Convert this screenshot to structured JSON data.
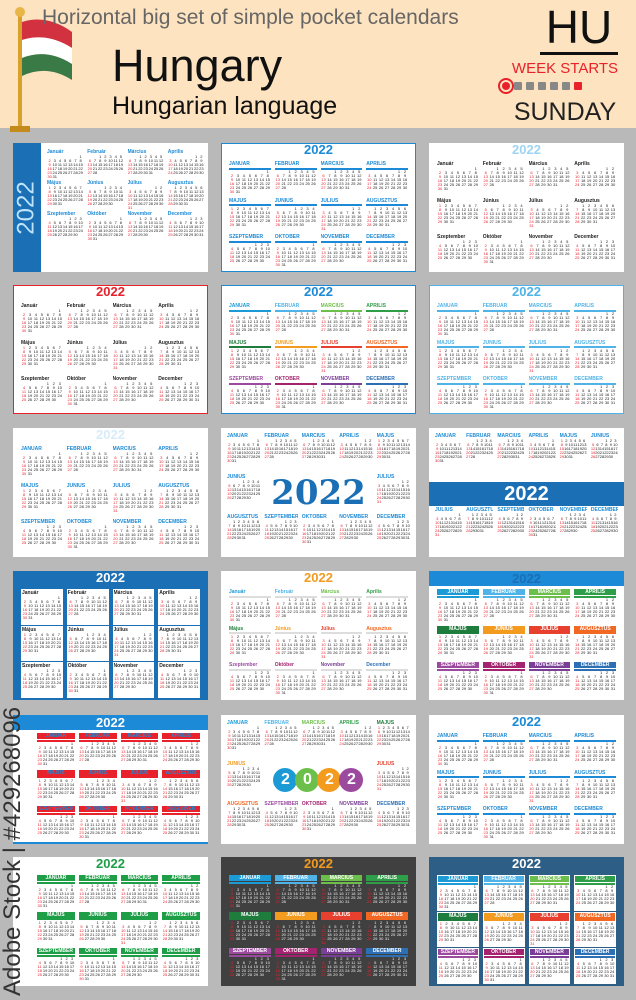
{
  "header": {
    "subtitle": "Horizontal big set of simple pocket calendars",
    "country": "Hungary",
    "language": "Hungarian language",
    "code": "HU",
    "week_starts": "WEEK STARTS",
    "start_day": "SUNDAY",
    "flag_colors": [
      "#d2323f",
      "#ffffff",
      "#3a7a47"
    ]
  },
  "watermark": "Adobe Stock | #429268096",
  "year": "2022",
  "months": [
    {
      "name": "Január",
      "offset": 6,
      "days": 31
    },
    {
      "name": "Február",
      "offset": 2,
      "days": 28
    },
    {
      "name": "Március",
      "offset": 2,
      "days": 31
    },
    {
      "name": "Április",
      "offset": 5,
      "days": 30
    },
    {
      "name": "Május",
      "offset": 0,
      "days": 31
    },
    {
      "name": "Június",
      "offset": 3,
      "days": 30
    },
    {
      "name": "Július",
      "offset": 5,
      "days": 31
    },
    {
      "name": "Augusztus",
      "offset": 1,
      "days": 31
    },
    {
      "name": "Szeptember",
      "offset": 4,
      "days": 30
    },
    {
      "name": "Október",
      "offset": 6,
      "days": 31
    },
    {
      "name": "November",
      "offset": 2,
      "days": 30
    },
    {
      "name": "December",
      "offset": 4,
      "days": 31
    }
  ],
  "rainbow": [
    "#1c9ad6",
    "#4fb3e8",
    "#6cbf4a",
    "#2f9e48",
    "#1e7d3c",
    "#f29b1f",
    "#e8402f",
    "#f26722",
    "#9b4a9e",
    "#a3236f",
    "#7a3e96",
    "#2d6fb5"
  ],
  "cards": [
    {
      "bg": "#ffffff",
      "layout": "side",
      "year_color": "#bfe3fa",
      "band": "#1a6fb5",
      "label_color": "#1c8ad6",
      "upper": false
    },
    {
      "bg": "#ffffff",
      "layout": "top",
      "year_color": "#1c8ad6",
      "label_color": "#1c8ad6",
      "bar": "#1c8ad6",
      "upper": true,
      "border": "#1c8ad6"
    },
    {
      "bg": "#ffffff",
      "layout": "top",
      "year_color": "#9fd3f2",
      "label_color": "#222222",
      "upper": false
    },
    {
      "bg": "#ffffff",
      "layout": "top",
      "year_color": "#e8212b",
      "label_color": "#222222",
      "upper": false,
      "border": "#e8212b"
    },
    {
      "bg": "#ffffff",
      "layout": "top",
      "year_color": "#1c8ad6",
      "label_color": "rainbow",
      "bar": "rainbow",
      "upper": true,
      "border": "#1c8ad6"
    },
    {
      "bg": "#ffffff",
      "layout": "top",
      "year_color": "#4fb3e8",
      "label_color": "#4fb3e8",
      "bar": "#4fb3e8",
      "upper": true,
      "border": "#4fb3e8"
    },
    {
      "bg": "#ffffff",
      "layout": "faded",
      "year_color": "#d7ecf8",
      "label_color": "#1c8ad6",
      "upper": true
    },
    {
      "bg": "#ffffff",
      "layout": "center",
      "year_color": "#1a6fb5",
      "label_color": "#1c8ad6",
      "upper": true
    },
    {
      "bg": "#ffffff",
      "layout": "band",
      "year_color": "#ffffff",
      "band": "#1a6fb5",
      "label_color": "#1c8ad6",
      "upper": true
    },
    {
      "bg": "#1a6fb5",
      "layout": "top",
      "year_color": "#ffffff",
      "label_color": "#222222",
      "upper": false,
      "box": "#ffffff"
    },
    {
      "bg": "#ffffff",
      "layout": "top",
      "year_color": "#f29b1f",
      "label_color": "rainbow",
      "bar": "#dddddd",
      "upper": false
    },
    {
      "bg": "#ffffff",
      "layout": "top",
      "year_color": "#1a6fb5",
      "label_color": "#ffffff",
      "bar": "rainbow",
      "upper": true,
      "head": "#1c8ad6"
    },
    {
      "bg": "#ffffff",
      "layout": "top",
      "year_color": "#ffffff",
      "label_color": "#1c8ad6",
      "bar": "#e8212b",
      "upper": true,
      "head": "#1c8ad6"
    },
    {
      "bg": "#ffffff",
      "layout": "circles",
      "year_color": "#ffffff",
      "label_color": "rainbow",
      "upper": true
    },
    {
      "bg": "#ffffff",
      "layout": "top",
      "year_color": "#1c8ad6",
      "label_color": "#1c8ad6",
      "bar": "#1c8ad6",
      "upper": true
    },
    {
      "bg": "#ffffff",
      "layout": "top",
      "year_color": "#1f9e48",
      "label_color": "#ffffff",
      "bar": "#1f9e48",
      "upper": true,
      "labelbg": "#1f9e48"
    },
    {
      "bg": "#404040",
      "layout": "top",
      "year_color": "#f29b1f",
      "label_color": "#ffffff",
      "bar": "rainbow",
      "upper": true,
      "labelbg": "rainbow",
      "daycolor": "#eeeeee"
    },
    {
      "bg": "#2d5f86",
      "layout": "top",
      "year_color": "#ffffff",
      "label_color": "#ffffff",
      "bar": "rainbow",
      "upper": true,
      "labelbg": "rainbow",
      "box": "#ffffff"
    }
  ]
}
